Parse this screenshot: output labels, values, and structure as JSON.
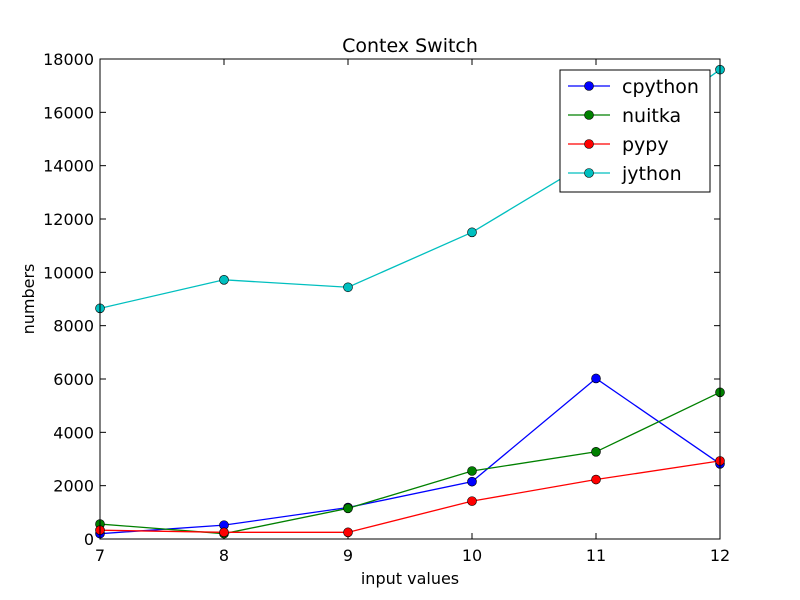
{
  "chart_data": {
    "type": "line",
    "title": "Contex Switch",
    "xlabel": "input values",
    "ylabel": "numbers",
    "x": [
      7,
      8,
      9,
      10,
      11,
      12
    ],
    "xlim": [
      7,
      12
    ],
    "ylim": [
      0,
      18000
    ],
    "xticks": [
      "7",
      "8",
      "9",
      "10",
      "11",
      "12"
    ],
    "yticks": [
      "0",
      "2000",
      "4000",
      "6000",
      "8000",
      "10000",
      "12000",
      "14000",
      "16000",
      "18000"
    ],
    "legend_position": "top-right",
    "grid": false,
    "series": [
      {
        "name": "cpython",
        "color": "#0000ff",
        "values": [
          200,
          520,
          1180,
          2150,
          6020,
          2820
        ]
      },
      {
        "name": "nuitka",
        "color": "#008000",
        "values": [
          560,
          200,
          1150,
          2550,
          3270,
          5500
        ]
      },
      {
        "name": "pypy",
        "color": "#ff0000",
        "values": [
          330,
          250,
          250,
          1420,
          2230,
          2930
        ]
      },
      {
        "name": "jython",
        "color": "#00bfbf",
        "values": [
          8650,
          9720,
          9440,
          11500,
          14300,
          17600
        ]
      }
    ]
  }
}
